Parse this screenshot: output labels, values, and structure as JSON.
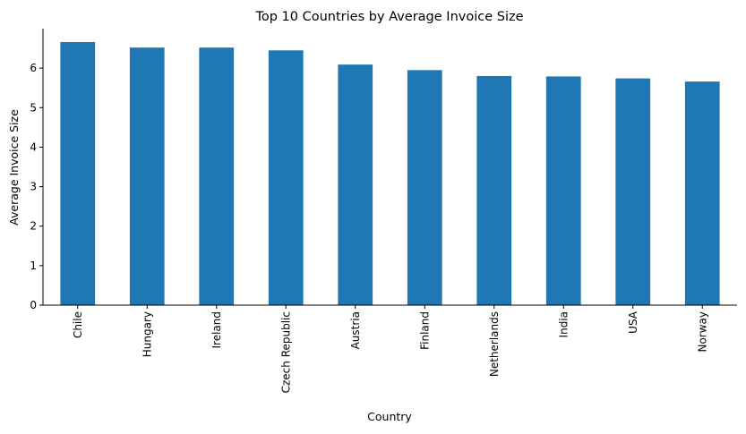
{
  "chart_data": {
    "type": "bar",
    "title": "Top 10 Countries by Average Invoice Size",
    "xlabel": "Country",
    "ylabel": "Average Invoice Size",
    "categories": [
      "Chile",
      "Hungary",
      "Ireland",
      "Czech Republic",
      "Austria",
      "Finland",
      "Netherlands",
      "India",
      "USA",
      "Norway"
    ],
    "values": [
      6.66,
      6.52,
      6.52,
      6.45,
      6.09,
      5.95,
      5.8,
      5.79,
      5.74,
      5.66
    ],
    "ylim": [
      0,
      7
    ],
    "yticks": [
      0,
      1,
      2,
      3,
      4,
      5,
      6
    ],
    "bar_color": "#1f77b4",
    "grid": false,
    "legend": "none"
  }
}
